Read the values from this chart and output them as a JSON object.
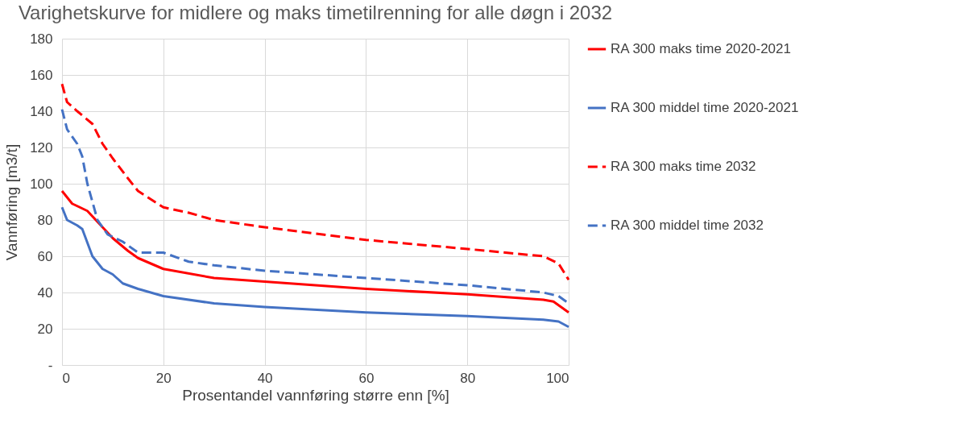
{
  "chart_data": {
    "type": "line",
    "title": "Varighetskurve for midlere og maks timetilrenning for alle døgn i 2032",
    "xlabel": "Prosentandel vannføring større enn [%]",
    "ylabel": "Vannføring [m3/t]",
    "xlim": [
      0,
      100
    ],
    "xticks": [
      0,
      20,
      40,
      60,
      80,
      100
    ],
    "ylim": [
      0,
      180
    ],
    "yticks": [
      {
        "value": 0,
        "label": "-"
      },
      20,
      40,
      60,
      80,
      100,
      120,
      140,
      160,
      180
    ],
    "grid": true,
    "legend": "right",
    "marker": "none",
    "series": [
      {
        "name": "RA 300 maks time 2020-2021",
        "color": "#ff0000",
        "line_style": "solid",
        "x": [
          0,
          2,
          5,
          8,
          10,
          13,
          15,
          20,
          30,
          40,
          60,
          80,
          95,
          97,
          100
        ],
        "values": [
          96,
          89,
          85,
          76,
          70,
          63,
          59,
          53,
          48,
          46,
          42,
          39,
          36,
          35,
          29
        ]
      },
      {
        "name": "RA 300 middel time 2020-2021",
        "color": "#4472c4",
        "line_style": "solid",
        "x": [
          0,
          1,
          3,
          4,
          6,
          8,
          10,
          12,
          15,
          20,
          30,
          40,
          60,
          80,
          95,
          98,
          100
        ],
        "values": [
          87,
          80,
          77,
          75,
          60,
          53,
          50,
          45,
          42,
          38,
          34,
          32,
          29,
          27,
          25,
          24,
          21
        ]
      },
      {
        "name": "RA 300 maks time 2032",
        "color": "#ff0000",
        "line_style": "dashed",
        "x": [
          0,
          1,
          3,
          6,
          8,
          10,
          13,
          15,
          20,
          25,
          30,
          40,
          60,
          80,
          95,
          98,
          100
        ],
        "values": [
          155,
          145,
          140,
          133,
          122,
          114,
          103,
          96,
          87,
          84,
          80,
          76,
          69,
          64,
          60,
          56,
          47
        ]
      },
      {
        "name": "RA 300 middel time 2032",
        "color": "#4472c4",
        "line_style": "dashed",
        "x": [
          0,
          1,
          3,
          4,
          5,
          7,
          9,
          12,
          15,
          20,
          25,
          30,
          40,
          60,
          80,
          95,
          98,
          100
        ],
        "values": [
          141,
          130,
          122,
          115,
          100,
          80,
          72,
          68,
          62,
          62,
          57,
          55,
          52,
          48,
          44,
          40,
          38,
          34
        ]
      }
    ]
  }
}
